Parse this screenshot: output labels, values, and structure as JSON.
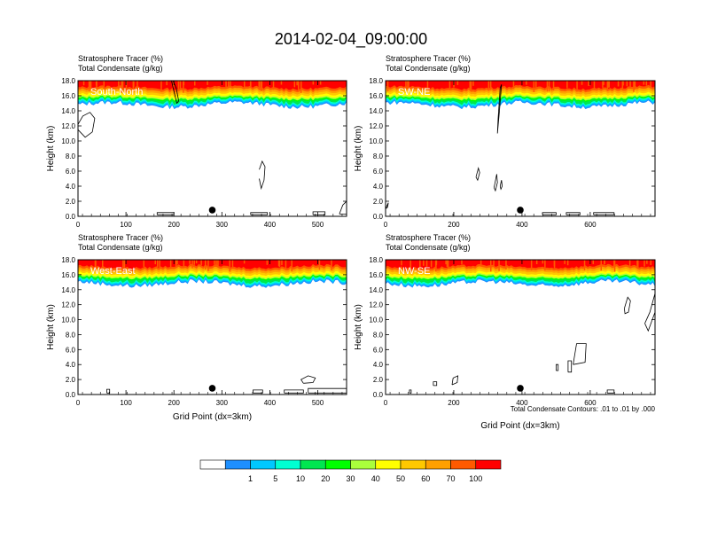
{
  "title": "2014-02-04_09:00:00",
  "footnote": "Total Condensate Contours: .01 to .01 by .000",
  "colorbar": {
    "colors": [
      "#ffffff",
      "#1e8fff",
      "#00c8ff",
      "#00ffd2",
      "#00e650",
      "#00ff00",
      "#aaff3c",
      "#ffff00",
      "#ffc800",
      "#ffa000",
      "#ff5a00",
      "#ff0000"
    ],
    "labels": [
      "1",
      "5",
      "10",
      "20",
      "30",
      "40",
      "50",
      "60",
      "70",
      "100"
    ]
  },
  "chart_data": [
    {
      "type": "heatmap",
      "panel_label": "South-North",
      "field_label": "Stratosphere Tracer   (%)",
      "contour_label": "Total Condensate   (g/kg)",
      "xlabel": "",
      "ylabel": "Height (km)",
      "xlim": [
        0,
        560
      ],
      "ylim": [
        0,
        18
      ],
      "xticks": [
        0,
        100,
        200,
        300,
        400,
        500
      ],
      "yticks": [
        "0.0",
        "2.0",
        "4.0",
        "6.0",
        "8.0",
        "10.0",
        "12.0",
        "14.0",
        "16.0",
        "18.0"
      ],
      "tracer_base_km": 14.8,
      "marker": {
        "x": 280,
        "y": 0.6
      },
      "contours": [
        {
          "x": [
            0,
            10,
            25,
            35,
            30,
            15,
            0
          ],
          "y": [
            12.2,
            13.3,
            13.8,
            13.0,
            11.2,
            10.5,
            11.5
          ]
        },
        {
          "x": [
            195,
            200,
            206,
            210,
            205,
            198
          ],
          "y": [
            18,
            16.6,
            15.0,
            15.3,
            17.0,
            18
          ]
        },
        {
          "x": [
            378,
            384,
            390,
            388,
            382,
            378
          ],
          "y": [
            6.2,
            7.3,
            6.6,
            4.8,
            3.7,
            5.0
          ]
        },
        {
          "x": [
            165,
            200,
            200,
            165,
            165
          ],
          "y": [
            0.2,
            0.2,
            0.5,
            0.5,
            0.2
          ]
        },
        {
          "x": [
            360,
            395,
            395,
            360,
            360
          ],
          "y": [
            0.2,
            0.2,
            0.5,
            0.5,
            0.2
          ]
        },
        {
          "x": [
            490,
            515,
            515,
            490,
            490
          ],
          "y": [
            0.2,
            0.2,
            0.6,
            0.6,
            0.2
          ]
        },
        {
          "x": [
            545,
            552,
            560,
            560,
            545
          ],
          "y": [
            0.3,
            1.5,
            2.0,
            0.3,
            0.3
          ]
        }
      ]
    },
    {
      "type": "heatmap",
      "panel_label": "SW-NE",
      "field_label": "Stratosphere Tracer   (%)",
      "contour_label": "Total Condensate   (g/kg)",
      "xlabel": "",
      "ylabel": "Height (km)",
      "xlim": [
        0,
        790
      ],
      "ylim": [
        0,
        18
      ],
      "xticks": [
        0,
        200,
        400,
        600
      ],
      "yticks": [
        "0.0",
        "2.0",
        "4.0",
        "6.0",
        "8.0",
        "10.0",
        "12.0",
        "14.0",
        "16.0",
        "18.0"
      ],
      "tracer_base_km": 14.8,
      "marker": {
        "x": 395,
        "y": 0.6
      },
      "contours": [
        {
          "x": [
            328,
            334,
            340,
            336,
            330,
            328
          ],
          "y": [
            11.0,
            14.0,
            17.5,
            17.0,
            13.0,
            11.0
          ]
        },
        {
          "x": [
            265,
            272,
            276,
            270,
            265
          ],
          "y": [
            5.2,
            6.4,
            5.8,
            4.8,
            5.2
          ]
        },
        {
          "x": [
            318,
            326,
            328,
            322,
            318
          ],
          "y": [
            3.8,
            5.6,
            4.5,
            3.4,
            3.8
          ]
        },
        {
          "x": [
            336,
            340,
            342,
            338,
            336
          ],
          "y": [
            4.0,
            4.8,
            4.0,
            3.6,
            4.0
          ]
        },
        {
          "x": [
            0,
            8,
            6,
            0
          ],
          "y": [
            1.0,
            1.8,
            1.2,
            1.0
          ]
        },
        {
          "x": [
            460,
            500,
            500,
            460,
            460
          ],
          "y": [
            0.2,
            0.2,
            0.5,
            0.5,
            0.2
          ]
        },
        {
          "x": [
            530,
            570,
            570,
            530,
            530
          ],
          "y": [
            0.2,
            0.2,
            0.5,
            0.5,
            0.2
          ]
        },
        {
          "x": [
            610,
            670,
            670,
            610,
            610
          ],
          "y": [
            0.2,
            0.2,
            0.5,
            0.5,
            0.2
          ]
        }
      ]
    },
    {
      "type": "heatmap",
      "panel_label": "West-East",
      "field_label": "Stratosphere Tracer   (%)",
      "contour_label": "Total Condensate   (g/kg)",
      "xlabel": "Grid Point (dx=3km)",
      "ylabel": "Height (km)",
      "xlim": [
        0,
        560
      ],
      "ylim": [
        0,
        18
      ],
      "xticks": [
        0,
        100,
        200,
        300,
        400,
        500
      ],
      "yticks": [
        "0.0",
        "2.0",
        "4.0",
        "6.0",
        "8.0",
        "10.0",
        "12.0",
        "14.0",
        "16.0",
        "18.0"
      ],
      "tracer_base_km": 14.8,
      "marker": {
        "x": 280,
        "y": 0.6
      },
      "contours": [
        {
          "x": [
            470,
            490,
            495,
            480,
            465,
            470
          ],
          "y": [
            1.5,
            1.6,
            2.2,
            2.5,
            2.0,
            1.5
          ]
        },
        {
          "x": [
            430,
            470,
            470,
            430,
            430
          ],
          "y": [
            0.2,
            0.2,
            0.6,
            0.6,
            0.2
          ]
        },
        {
          "x": [
            480,
            560,
            560,
            480,
            480
          ],
          "y": [
            0.2,
            0.2,
            0.8,
            0.8,
            0.2
          ]
        },
        {
          "x": [
            365,
            385,
            385,
            365,
            365
          ],
          "y": [
            0.2,
            0.2,
            0.6,
            0.6,
            0.2
          ]
        },
        {
          "x": [
            60,
            66,
            66,
            60,
            60
          ],
          "y": [
            0.2,
            0.2,
            0.7,
            0.7,
            0.2
          ]
        }
      ]
    },
    {
      "type": "heatmap",
      "panel_label": "NW-SE",
      "field_label": "Stratosphere Tracer   (%)",
      "contour_label": "Total Condensate   (g/kg)",
      "xlabel": "Grid Point (dx=3km)",
      "ylabel": "Height (km)",
      "xlim": [
        0,
        790
      ],
      "ylim": [
        0,
        18
      ],
      "xticks": [
        0,
        200,
        400,
        600
      ],
      "yticks": [
        "0.0",
        "2.0",
        "4.0",
        "6.0",
        "8.0",
        "10.0",
        "12.0",
        "14.0",
        "16.0",
        "18.0"
      ],
      "tracer_base_km": 14.8,
      "marker": {
        "x": 395,
        "y": 0.6
      },
      "contours": [
        {
          "x": [
            700,
            710,
            718,
            712,
            702,
            700
          ],
          "y": [
            11.5,
            13.0,
            12.5,
            11.0,
            10.8,
            11.5
          ]
        },
        {
          "x": [
            760,
            775,
            790,
            790,
            770,
            760
          ],
          "y": [
            9.5,
            11.0,
            13.5,
            11.0,
            8.5,
            9.5
          ]
        },
        {
          "x": [
            550,
            585,
            588,
            560,
            550
          ],
          "y": [
            4.0,
            4.3,
            6.8,
            6.8,
            4.0
          ]
        },
        {
          "x": [
            535,
            545,
            545,
            535,
            535
          ],
          "y": [
            3.0,
            3.0,
            4.5,
            4.5,
            3.0
          ]
        },
        {
          "x": [
            500,
            506,
            506,
            500,
            500
          ],
          "y": [
            3.2,
            3.2,
            4.0,
            4.0,
            3.2
          ]
        },
        {
          "x": [
            195,
            210,
            212,
            198,
            195
          ],
          "y": [
            1.3,
            1.6,
            2.5,
            2.2,
            1.3
          ]
        },
        {
          "x": [
            140,
            150,
            150,
            140,
            140
          ],
          "y": [
            1.2,
            1.2,
            1.7,
            1.7,
            1.2
          ]
        },
        {
          "x": [
            650,
            670,
            670,
            650,
            650
          ],
          "y": [
            0.2,
            0.2,
            0.6,
            0.6,
            0.2
          ]
        },
        {
          "x": [
            70,
            75,
            75,
            70,
            70
          ],
          "y": [
            0.2,
            0.2,
            0.6,
            0.6,
            0.2
          ]
        }
      ]
    }
  ]
}
